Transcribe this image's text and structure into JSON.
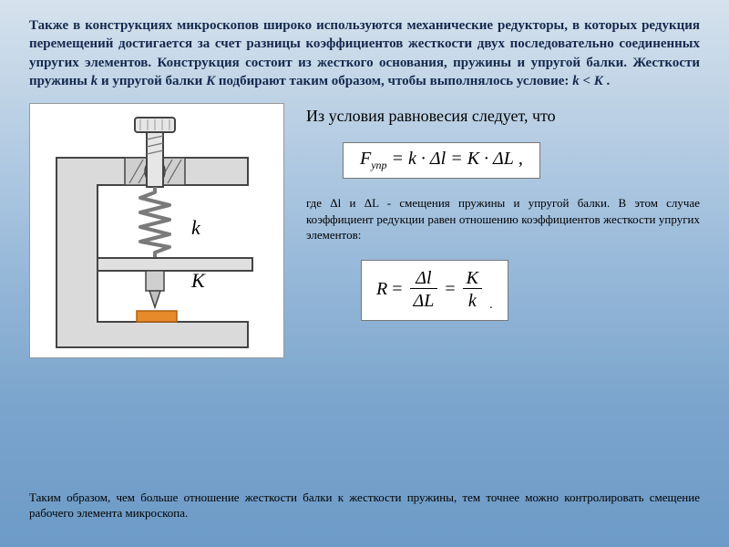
{
  "intro": {
    "text_html": "Также в конструкциях микроскопов широко используются механические редукторы, в которых редукция перемещений достигается за счет разницы коэффициентов жесткости двух последовательно соединенных упругих элементов. Конструкция состоит из жесткого основания, пружины и упругой балки. Жесткости пружины <span class=\"ital\">k</span> и упругой балки <span class=\"ital\">K</span> подбирают таким образом, чтобы выполнялось условие: <span class=\"ital\">k</span> &lt; <span class=\"ital\">K</span> .",
    "color": "#15294e",
    "fontsize": 15,
    "bold": true
  },
  "figure": {
    "type": "diagram",
    "description": "mechanical-reducer-schematic",
    "colors": {
      "frame_fill": "#dadada",
      "frame_stroke": "#444444",
      "hatch": "#666666",
      "screw_fill": "#e6e6e6",
      "spring": "#7a7a7a",
      "beam_fill": "#e0e0e0",
      "probe_fill": "#cfcfcf",
      "sample_fill": "#e68a2a",
      "sample_stroke": "#b05f12"
    },
    "labels": {
      "k": "k",
      "K": "K"
    },
    "label_fontsize": 20,
    "box_bg": "#ffffff"
  },
  "equilibrium_lead": "Из условия равновесия следует, что",
  "formula1": {
    "box_bg": "#ffffff",
    "box_border": "#777777",
    "text": "F_упр = k · Δl = K · ΔL ,",
    "fontsize": 20
  },
  "note": "где Δl и ΔL - смещения пружины и упругой балки. В этом случае коэффициент редукции равен отношению коэффициентов жесткости упругих элементов:",
  "formula2": {
    "box_bg": "#ffffff",
    "box_border": "#777777",
    "R": "R",
    "frac1_num": "Δl",
    "frac1_den": "ΔL",
    "frac2_num": "K",
    "frac2_den": "k",
    "tail": ".",
    "fontsize": 20
  },
  "conclusion": "Таким образом, чем больше отношение жесткости балки к жесткости пружины, тем точнее можно контролировать смещение рабочего элемента микроскопа.",
  "background_gradient": [
    "#d6e2ed",
    "#9cbcdb",
    "#7aa4cc",
    "#6d9bc7"
  ]
}
